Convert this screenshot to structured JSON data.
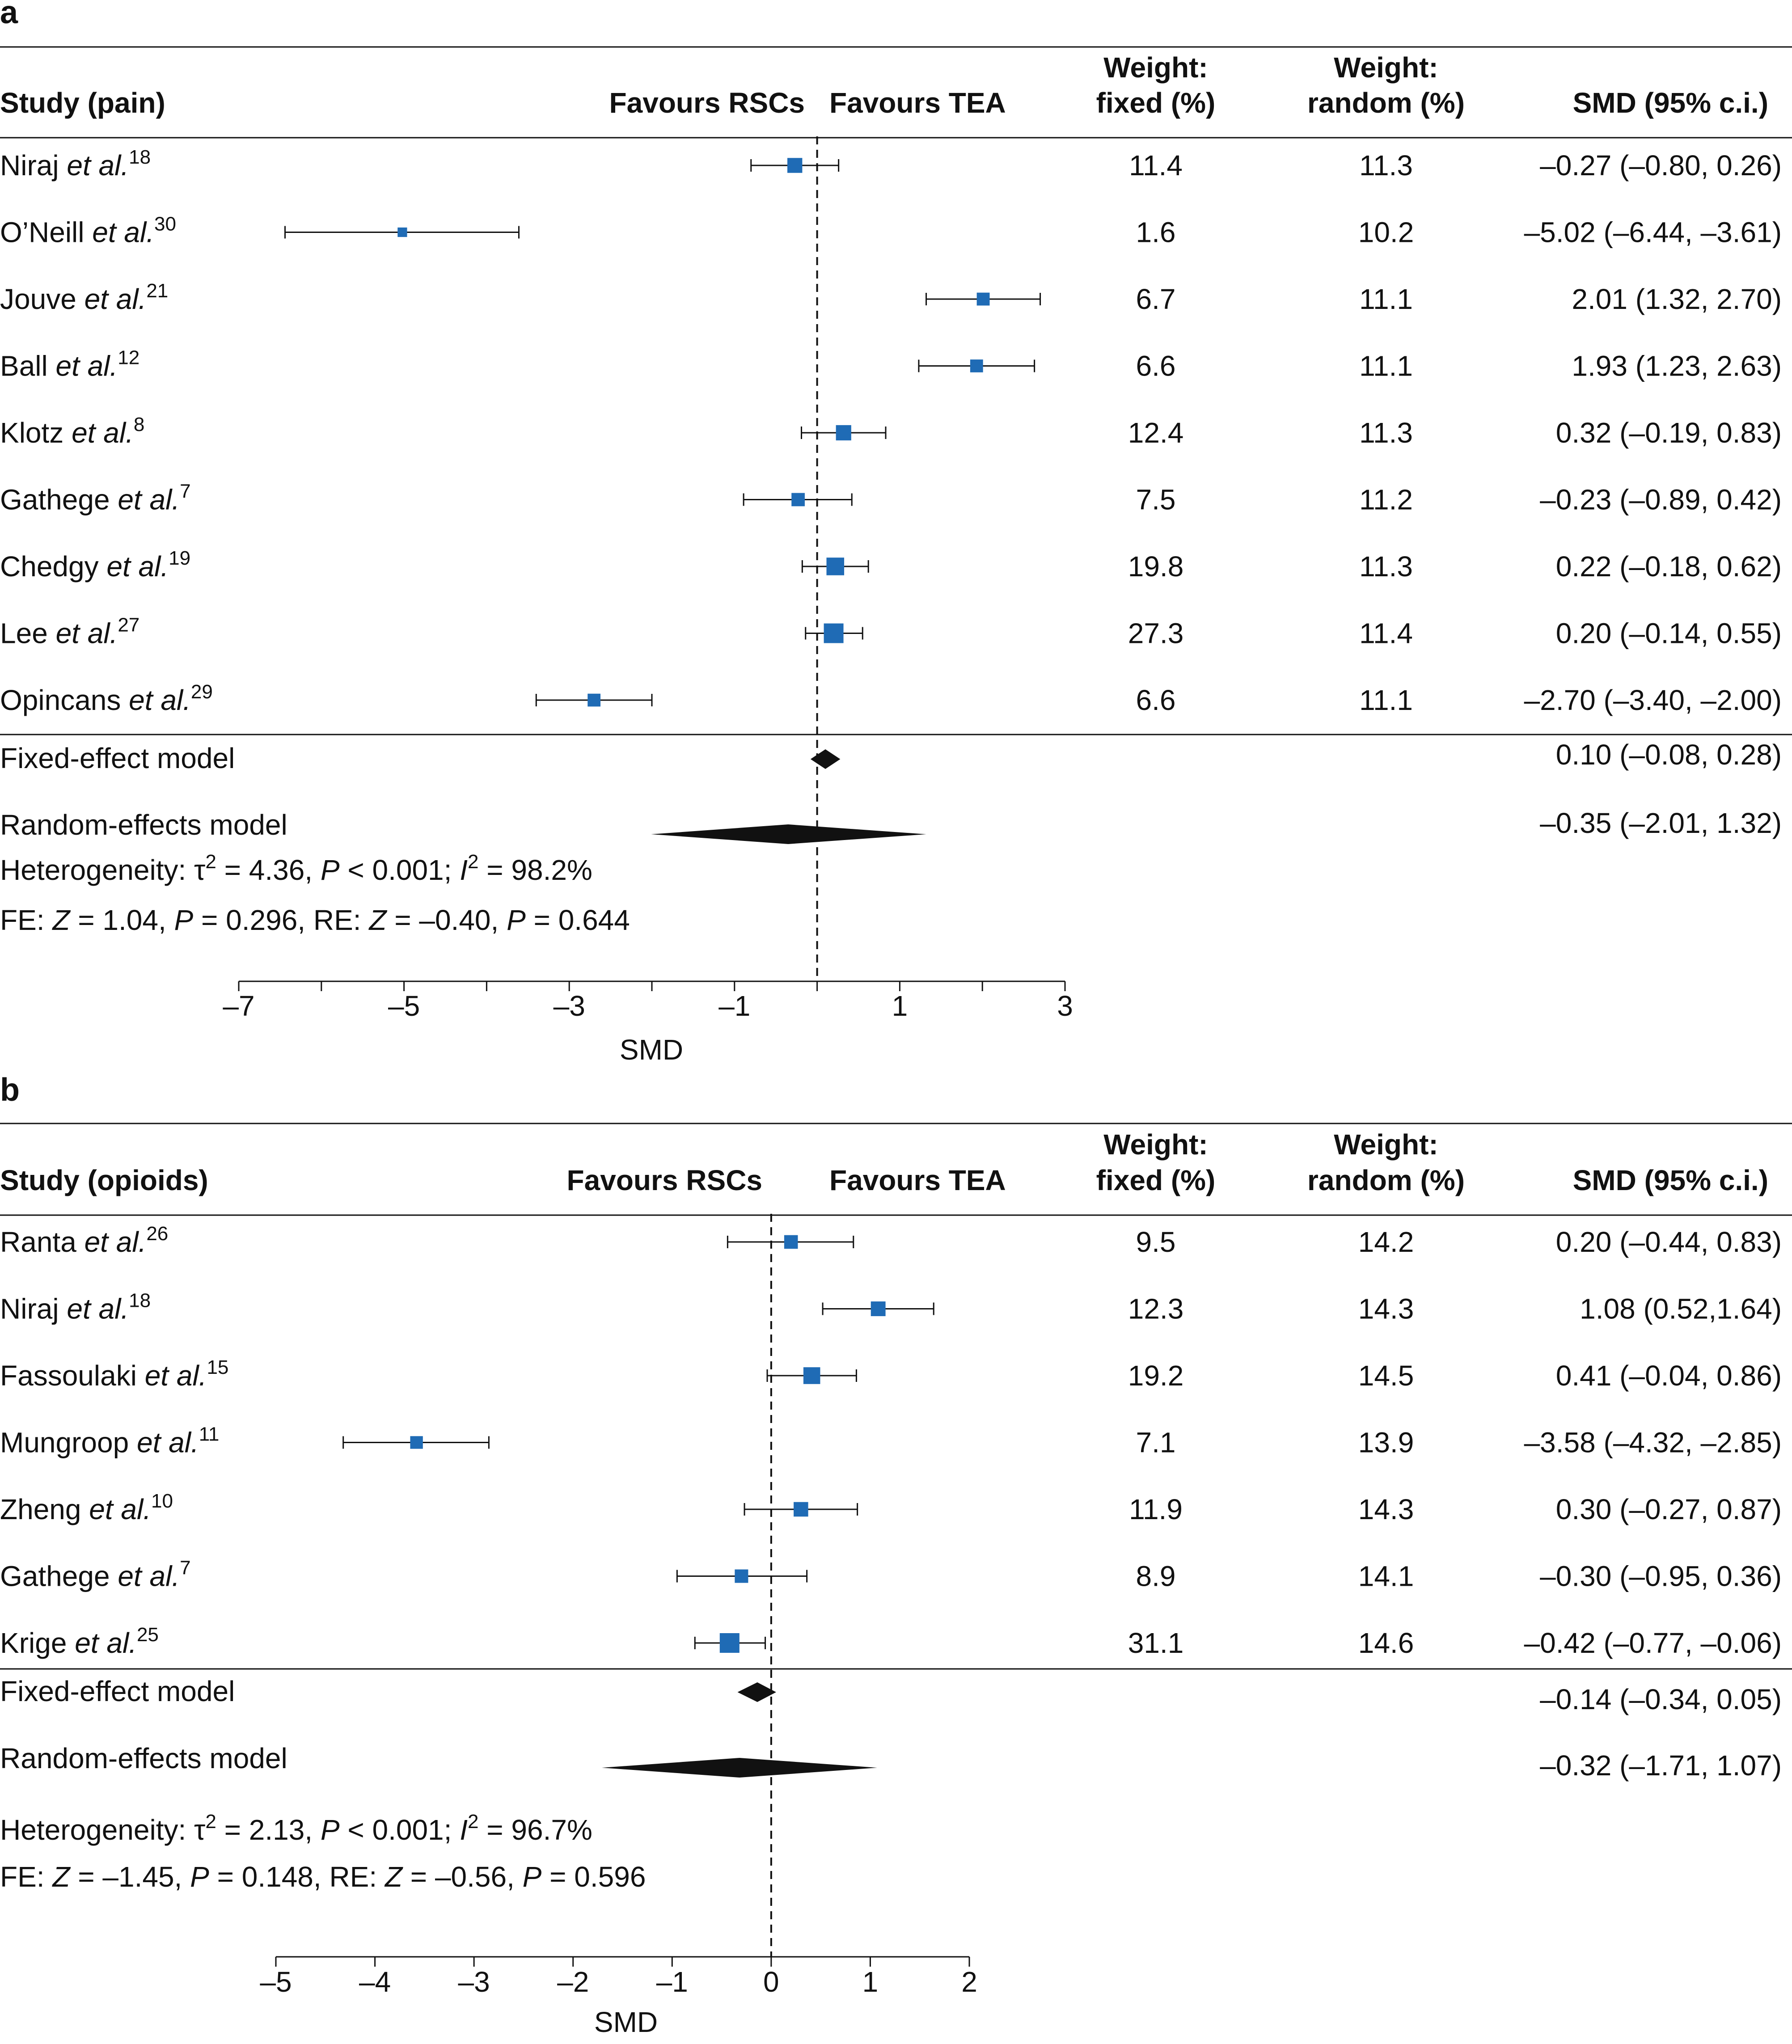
{
  "chart_data": [
    {
      "type": "forest",
      "panel_label": "a",
      "headers": {
        "study": "Study (pain)",
        "favours_left": "Favours RSCs",
        "favours_right": "Favours TEA",
        "weight_fixed_1": "Weight:",
        "weight_fixed_2": "fixed (%)",
        "weight_random_1": "Weight:",
        "weight_random_2": "random (%)",
        "smd": "SMD (95% c.i.)"
      },
      "studies": [
        {
          "author": "Niraj",
          "ref": "18",
          "smd": -0.27,
          "lower": -0.8,
          "upper": 0.26,
          "w_fixed": "11.4",
          "w_random": "11.3",
          "ci_text": "–0.27 (–0.80, 0.26)"
        },
        {
          "author": "O’Neill",
          "ref": "30",
          "smd": -5.02,
          "lower": -6.44,
          "upper": -3.61,
          "w_fixed": "1.6",
          "w_random": "10.2",
          "ci_text": "–5.02 (–6.44, –3.61)"
        },
        {
          "author": "Jouve",
          "ref": "21",
          "smd": 2.01,
          "lower": 1.32,
          "upper": 2.7,
          "w_fixed": "6.7",
          "w_random": "11.1",
          "ci_text": "2.01 (1.32, 2.70)"
        },
        {
          "author": "Ball",
          "ref": "12",
          "smd": 1.93,
          "lower": 1.23,
          "upper": 2.63,
          "w_fixed": "6.6",
          "w_random": "11.1",
          "ci_text": "1.93 (1.23, 2.63)"
        },
        {
          "author": "Klotz",
          "ref": "8",
          "smd": 0.32,
          "lower": -0.19,
          "upper": 0.83,
          "w_fixed": "12.4",
          "w_random": "11.3",
          "ci_text": "0.32 (–0.19, 0.83)"
        },
        {
          "author": "Gathege",
          "ref": "7",
          "smd": -0.23,
          "lower": -0.89,
          "upper": 0.42,
          "w_fixed": "7.5",
          "w_random": "11.2",
          "ci_text": "–0.23 (–0.89, 0.42)"
        },
        {
          "author": "Chedgy",
          "ref": "19",
          "smd": 0.22,
          "lower": -0.18,
          "upper": 0.62,
          "w_fixed": "19.8",
          "w_random": "11.3",
          "ci_text": "0.22 (–0.18, 0.62)"
        },
        {
          "author": "Lee",
          "ref": "27",
          "smd": 0.2,
          "lower": -0.14,
          "upper": 0.55,
          "w_fixed": "27.3",
          "w_random": "11.4",
          "ci_text": "0.20 (–0.14, 0.55)"
        },
        {
          "author": "Opincans",
          "ref": "29",
          "smd": -2.7,
          "lower": -3.4,
          "upper": -2.0,
          "w_fixed": "6.6",
          "w_random": "11.1",
          "ci_text": "–2.70 (–3.40, –2.00)"
        }
      ],
      "et_al": "et al.",
      "fixed_model": {
        "label": "Fixed-effect model",
        "smd": 0.1,
        "lower": -0.08,
        "upper": 0.28,
        "ci_text": "0.10 (–0.08, 0.28)"
      },
      "random_model": {
        "label": "Random-effects model",
        "smd": -0.35,
        "lower": -2.01,
        "upper": 1.32,
        "ci_text": "–0.35 (–2.01, 1.32)"
      },
      "heterogeneity": {
        "tau2": "4.36",
        "p": "0.001",
        "i2": "98.2%"
      },
      "tests": {
        "fe_z": "1.04",
        "fe_p": "0.296",
        "re_z": "–0.40",
        "re_p": "0.644"
      },
      "xlim": [
        -7,
        3
      ],
      "null_line": 0,
      "ticks": [
        {
          "value": -7,
          "label": "–7"
        },
        {
          "value": -6,
          "label": ""
        },
        {
          "value": -5,
          "label": "–5"
        },
        {
          "value": -4,
          "label": ""
        },
        {
          "value": -3,
          "label": "–3"
        },
        {
          "value": -2,
          "label": ""
        },
        {
          "value": -1,
          "label": "–1"
        },
        {
          "value": 0,
          "label": ""
        },
        {
          "value": 1,
          "label": "1"
        },
        {
          "value": 2,
          "label": ""
        },
        {
          "value": 3,
          "label": "3"
        }
      ],
      "xlabel": "SMD",
      "marker_color": "#1f6bb5"
    },
    {
      "type": "forest",
      "panel_label": "b",
      "headers": {
        "study": "Study (opioids)",
        "favours_left": "Favours RSCs",
        "favours_right": "Favours TEA",
        "weight_fixed_1": "Weight:",
        "weight_fixed_2": "fixed (%)",
        "weight_random_1": "Weight:",
        "weight_random_2": "random (%)",
        "smd": "SMD (95% c.i.)"
      },
      "studies": [
        {
          "author": "Ranta",
          "ref": "26",
          "smd": 0.2,
          "lower": -0.44,
          "upper": 0.83,
          "w_fixed": "9.5",
          "w_random": "14.2",
          "ci_text": "0.20 (–0.44, 0.83)"
        },
        {
          "author": "Niraj",
          "ref": "18",
          "smd": 1.08,
          "lower": 0.52,
          "upper": 1.64,
          "w_fixed": "12.3",
          "w_random": "14.3",
          "ci_text": "1.08 (0.52,1.64)"
        },
        {
          "author": "Fassoulaki",
          "ref": "15",
          "smd": 0.41,
          "lower": -0.04,
          "upper": 0.86,
          "w_fixed": "19.2",
          "w_random": "14.5",
          "ci_text": "0.41 (–0.04, 0.86)"
        },
        {
          "author": "Mungroop",
          "ref": "11",
          "smd": -3.58,
          "lower": -4.32,
          "upper": -2.85,
          "w_fixed": "7.1",
          "w_random": "13.9",
          "ci_text": "–3.58 (–4.32, –2.85)"
        },
        {
          "author": "Zheng",
          "ref": "10",
          "smd": 0.3,
          "lower": -0.27,
          "upper": 0.87,
          "w_fixed": "11.9",
          "w_random": "14.3",
          "ci_text": "0.30 (–0.27, 0.87)"
        },
        {
          "author": "Gathege",
          "ref": "7",
          "smd": -0.3,
          "lower": -0.95,
          "upper": 0.36,
          "w_fixed": "8.9",
          "w_random": "14.1",
          "ci_text": "–0.30 (–0.95, 0.36)"
        },
        {
          "author": "Krige",
          "ref": "25",
          "smd": -0.42,
          "lower": -0.77,
          "upper": -0.06,
          "w_fixed": "31.1",
          "w_random": "14.6",
          "ci_text": "–0.42 (–0.77, –0.06)"
        }
      ],
      "et_al": "et al.",
      "fixed_model": {
        "label": "Fixed-effect model",
        "smd": -0.14,
        "lower": -0.34,
        "upper": 0.05,
        "ci_text": "–0.14 (–0.34, 0.05)"
      },
      "random_model": {
        "label": "Random-effects model",
        "smd": -0.32,
        "lower": -1.71,
        "upper": 1.07,
        "ci_text": "–0.32 (–1.71, 1.07)"
      },
      "heterogeneity": {
        "tau2": "2.13",
        "p": "0.001",
        "i2": "96.7%"
      },
      "tests": {
        "fe_z": "–1.45",
        "fe_p": "0.148",
        "re_z": "–0.56",
        "re_p": "0.596"
      },
      "xlim": [
        -5,
        2
      ],
      "null_line": 0,
      "ticks": [
        {
          "value": -5,
          "label": "–5"
        },
        {
          "value": -4,
          "label": "–4"
        },
        {
          "value": -3,
          "label": "–3"
        },
        {
          "value": -2,
          "label": "–2"
        },
        {
          "value": -1,
          "label": "–1"
        },
        {
          "value": 0,
          "label": "0"
        },
        {
          "value": 1,
          "label": "1"
        },
        {
          "value": 2,
          "label": "2"
        }
      ],
      "xlabel": "SMD",
      "marker_color": "#1f6bb5"
    }
  ]
}
